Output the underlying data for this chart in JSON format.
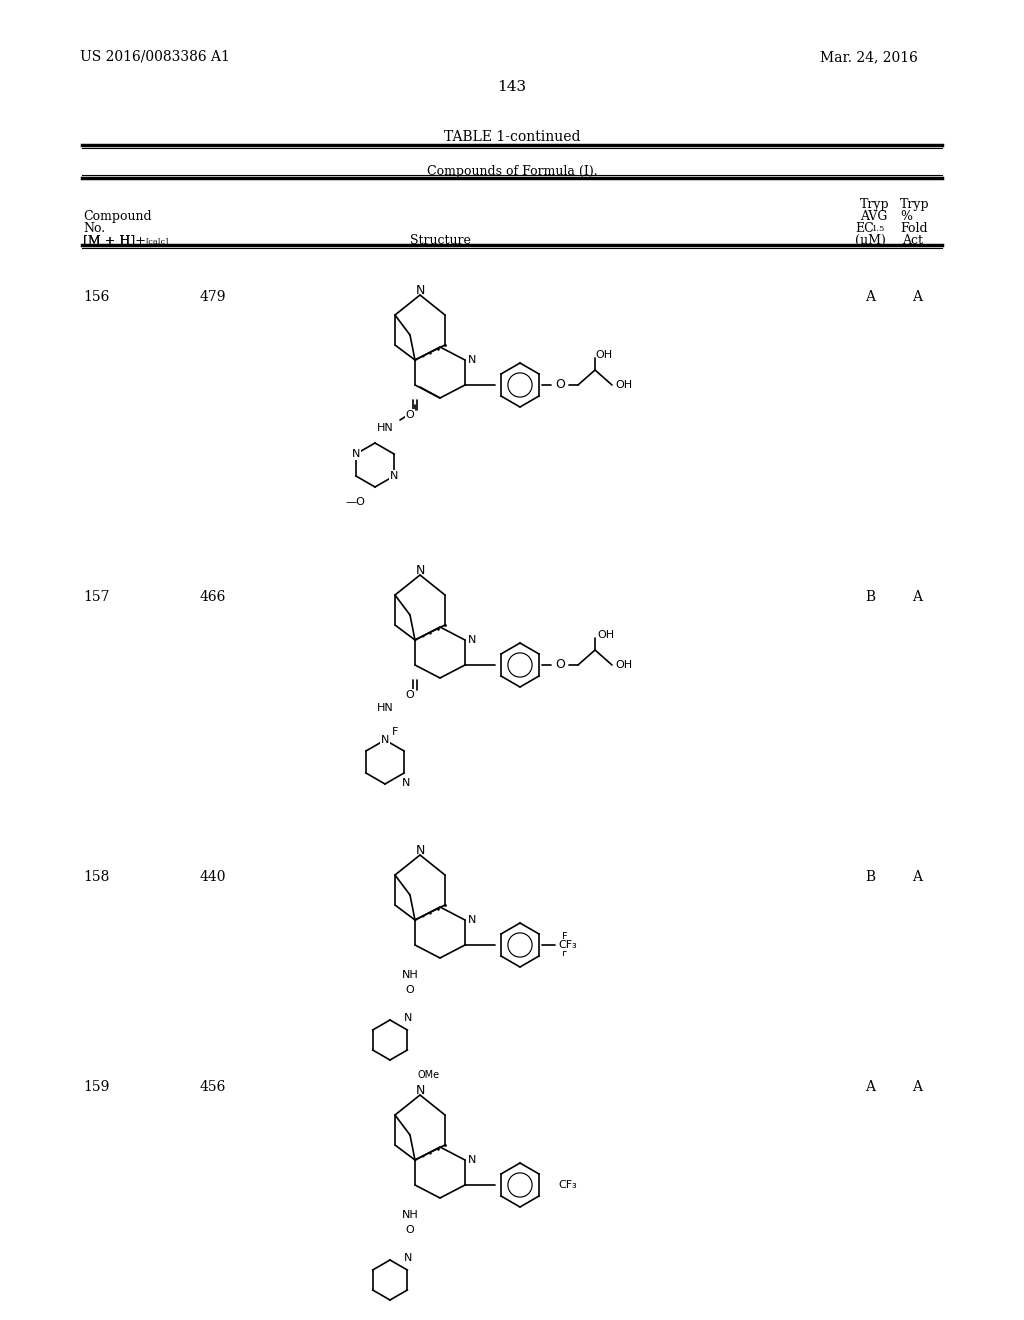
{
  "page_number": "143",
  "patent_number": "US 2016/0083386 A1",
  "patent_date": "Mar. 24, 2016",
  "table_title": "TABLE 1-continued",
  "table_subtitle": "Compounds of Formula (I).",
  "col_headers": {
    "compound_no": "Compound\nNo.",
    "mh": "[M + H]+[calc]",
    "structure": "Structure",
    "tryp_avg_ec": "Tryp\nAVG\nEC1.5\n(μM)",
    "tryp_fold": "Tryp\n%\nFold\nAct"
  },
  "rows": [
    {
      "no": "156",
      "mh": "479",
      "tryp_avg": "A",
      "tryp_fold": "A"
    },
    {
      "no": "157",
      "mh": "466",
      "tryp_avg": "B",
      "tryp_fold": "A"
    },
    {
      "no": "158",
      "mh": "440",
      "tryp_avg": "B",
      "tryp_fold": "A"
    },
    {
      "no": "159",
      "mh": "456",
      "tryp_avg": "A",
      "tryp_fold": "A"
    }
  ],
  "background_color": "#ffffff",
  "text_color": "#000000",
  "line_color": "#000000"
}
